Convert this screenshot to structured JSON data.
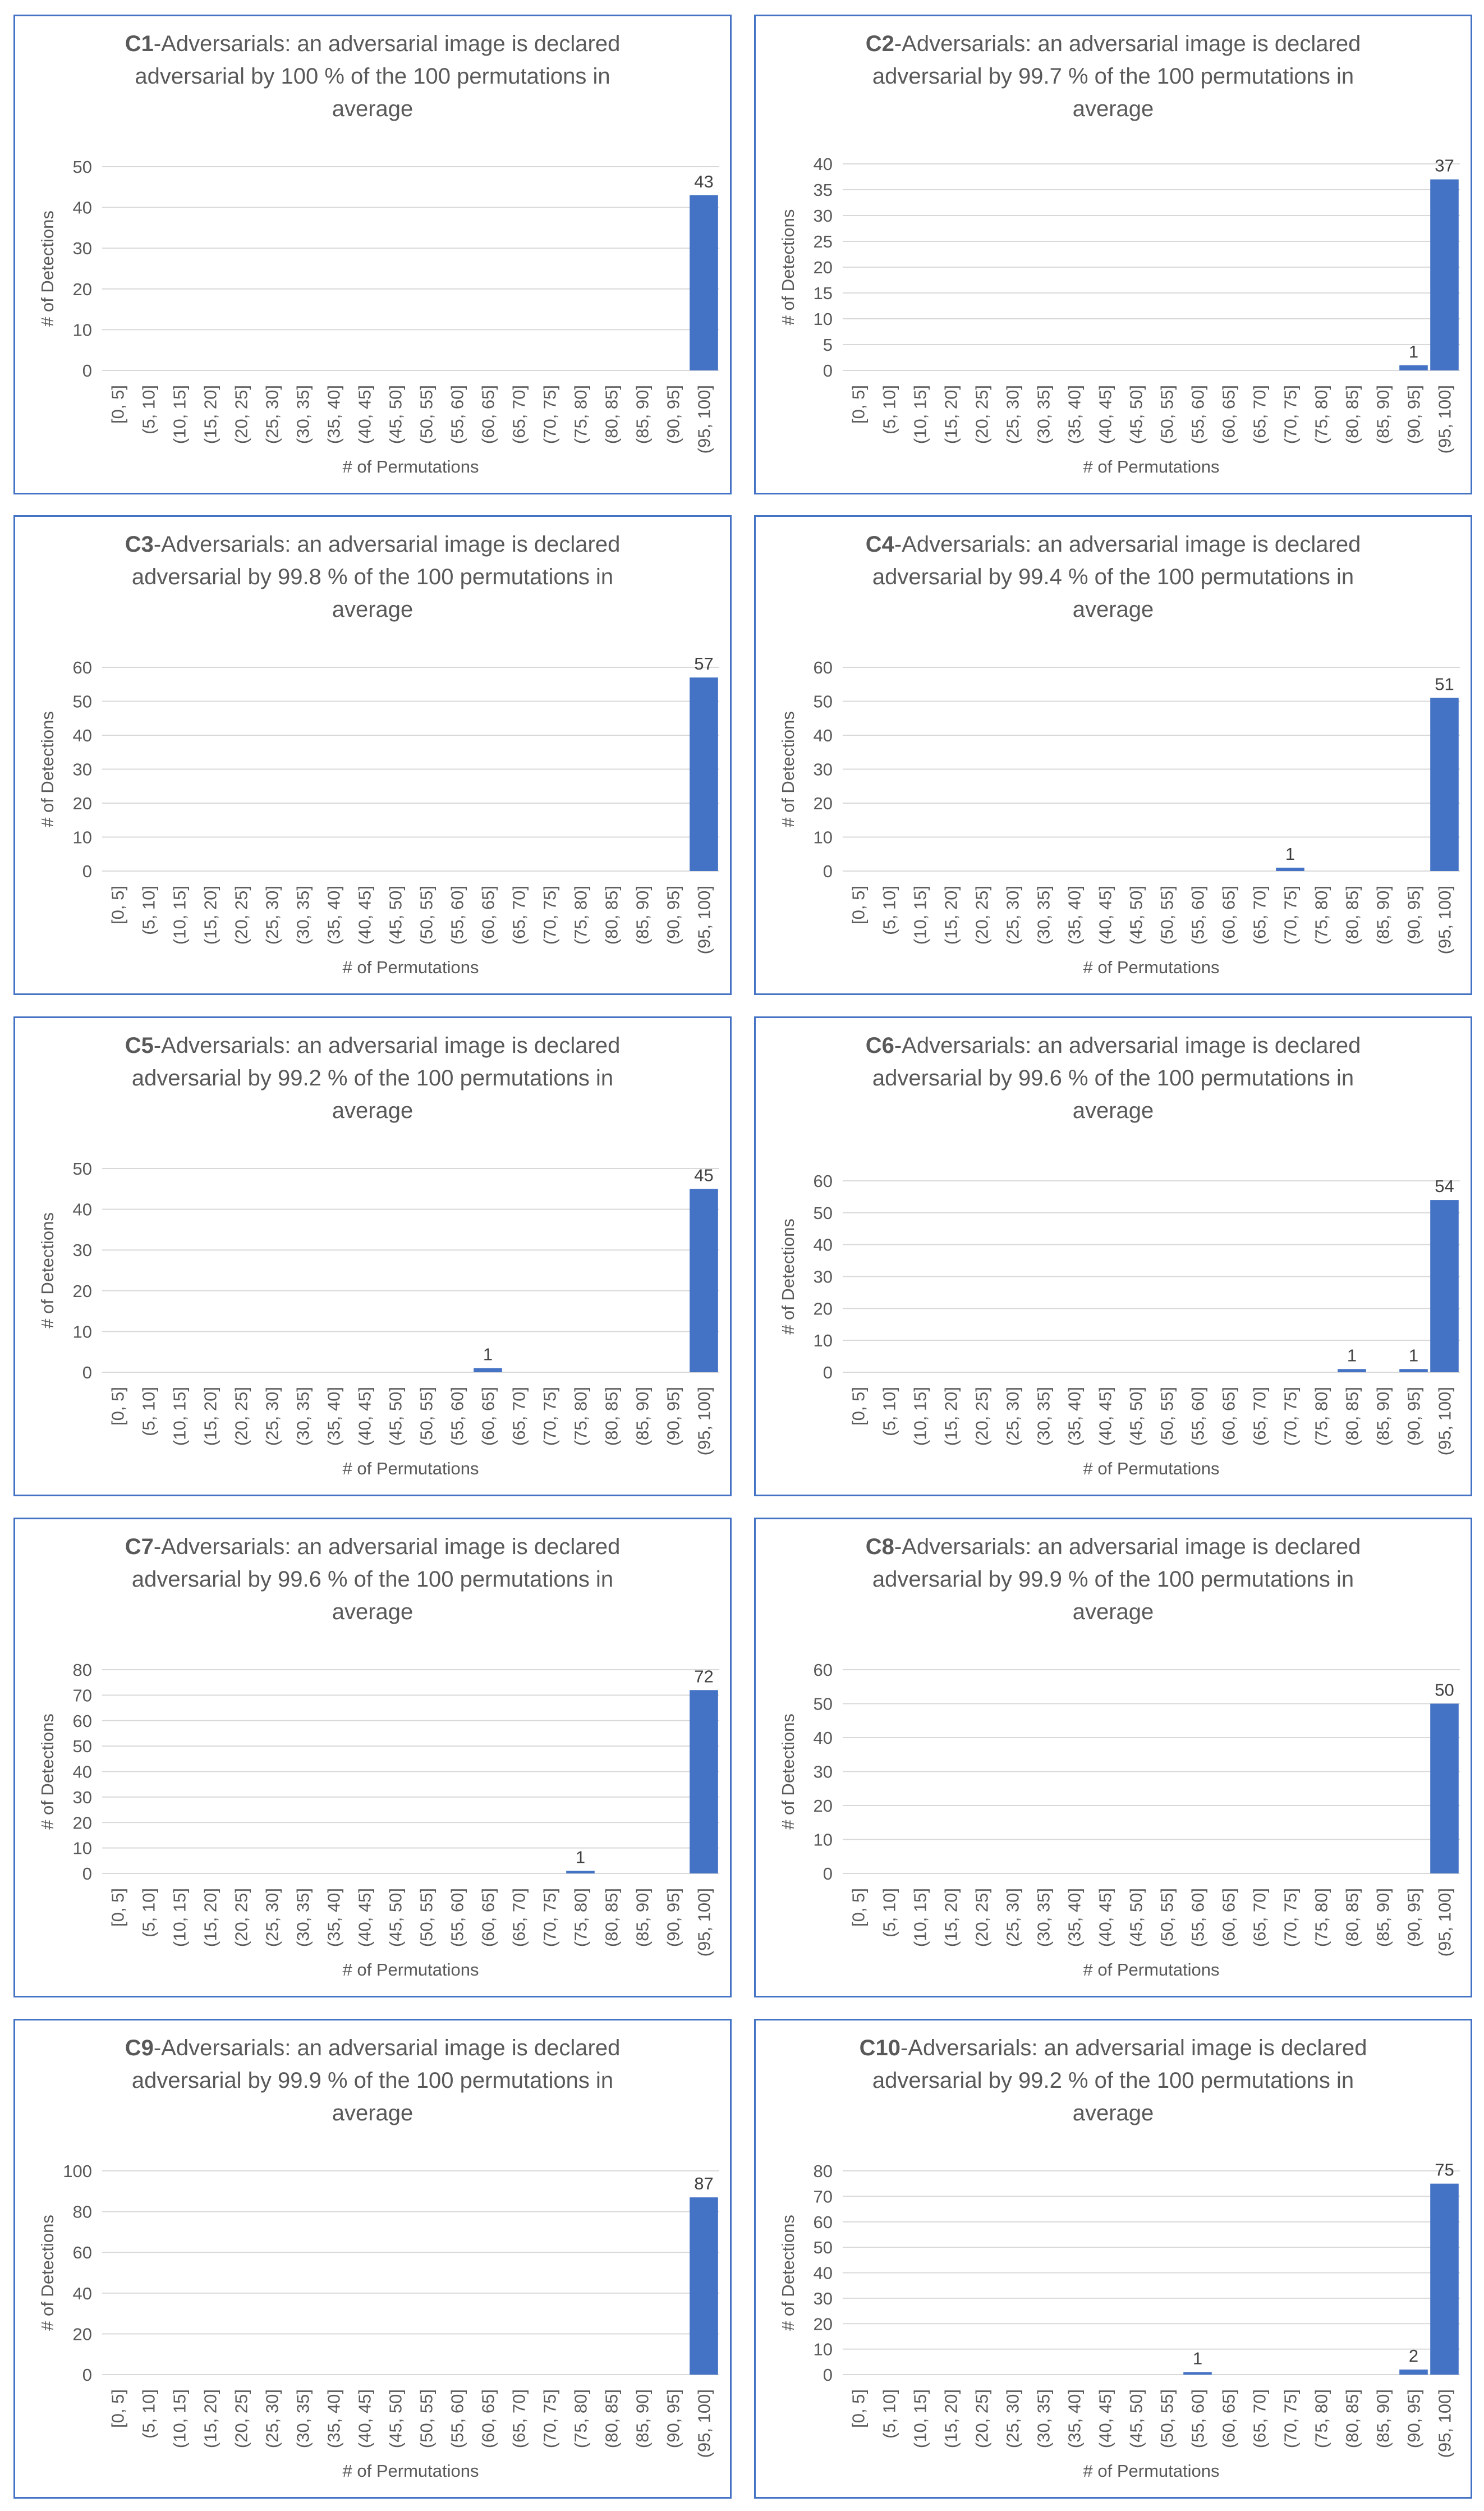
{
  "colors": {
    "bar": "#4472c4",
    "border": "#4472c4",
    "grid": "#d9d9d9",
    "text": "#595959"
  },
  "chart_data": [
    {
      "type": "bar",
      "title_bold": "C1",
      "title_rest": [
        "-Adversarials: an adversarial image is declared",
        "adversarial by 100 % of the 100 permutations in",
        "average"
      ],
      "xlabel": "# of Permutations",
      "ylabel": "# of Detections",
      "categories": [
        "[0, 5]",
        "(5, 10]",
        "(10, 15]",
        "(15, 20]",
        "(20, 25]",
        "(25, 30]",
        "(30, 35]",
        "(35, 40]",
        "(40, 45]",
        "(45, 50]",
        "(50, 55]",
        "(55, 60]",
        "(60, 65]",
        "(65, 70]",
        "(70, 75]",
        "(75, 80]",
        "(80, 85]",
        "(85, 90]",
        "(90, 95]",
        "(95, 100]"
      ],
      "values": [
        0,
        0,
        0,
        0,
        0,
        0,
        0,
        0,
        0,
        0,
        0,
        0,
        0,
        0,
        0,
        0,
        0,
        0,
        0,
        43
      ],
      "yticks": [
        0,
        10,
        20,
        30,
        40,
        50
      ],
      "ylim": [
        0,
        50
      ],
      "grid": true
    },
    {
      "type": "bar",
      "title_bold": "C2",
      "title_rest": [
        "-Adversarials: an adversarial image is declared",
        "adversarial by 99.7 % of the 100 permutations in",
        "average"
      ],
      "xlabel": "# of Permutations",
      "ylabel": "# of Detections",
      "categories": [
        "[0, 5]",
        "(5, 10]",
        "(10, 15]",
        "(15, 20]",
        "(20, 25]",
        "(25, 30]",
        "(30, 35]",
        "(35, 40]",
        "(40, 45]",
        "(45, 50]",
        "(50, 55]",
        "(55, 60]",
        "(60, 65]",
        "(65, 70]",
        "(70, 75]",
        "(75, 80]",
        "(80, 85]",
        "(85, 90]",
        "(90, 95]",
        "(95, 100]"
      ],
      "values": [
        0,
        0,
        0,
        0,
        0,
        0,
        0,
        0,
        0,
        0,
        0,
        0,
        0,
        0,
        0,
        0,
        0,
        0,
        1,
        37
      ],
      "yticks": [
        0,
        5,
        10,
        15,
        20,
        25,
        30,
        35,
        40
      ],
      "ylim": [
        0,
        40
      ],
      "grid": true
    },
    {
      "type": "bar",
      "title_bold": "C3",
      "title_rest": [
        "-Adversarials: an adversarial image is declared",
        "adversarial by 99.8 % of the 100 permutations in",
        "average"
      ],
      "xlabel": "# of Permutations",
      "ylabel": "# of Detections",
      "categories": [
        "[0, 5]",
        "(5, 10]",
        "(10, 15]",
        "(15, 20]",
        "(20, 25]",
        "(25, 30]",
        "(30, 35]",
        "(35, 40]",
        "(40, 45]",
        "(45, 50]",
        "(50, 55]",
        "(55, 60]",
        "(60, 65]",
        "(65, 70]",
        "(70, 75]",
        "(75, 80]",
        "(80, 85]",
        "(85, 90]",
        "(90, 95]",
        "(95, 100]"
      ],
      "values": [
        0,
        0,
        0,
        0,
        0,
        0,
        0,
        0,
        0,
        0,
        0,
        0,
        0,
        0,
        0,
        0,
        0,
        0,
        0,
        57
      ],
      "yticks": [
        0,
        10,
        20,
        30,
        40,
        50,
        60
      ],
      "ylim": [
        0,
        60
      ],
      "grid": true
    },
    {
      "type": "bar",
      "title_bold": "C4",
      "title_rest": [
        "-Adversarials: an adversarial image is declared",
        "adversarial by 99.4 % of the 100 permutations in",
        "average"
      ],
      "xlabel": "# of Permutations",
      "ylabel": "# of Detections",
      "categories": [
        "[0, 5]",
        "(5, 10]",
        "(10, 15]",
        "(15, 20]",
        "(20, 25]",
        "(25, 30]",
        "(30, 35]",
        "(35, 40]",
        "(40, 45]",
        "(45, 50]",
        "(50, 55]",
        "(55, 60]",
        "(60, 65]",
        "(65, 70]",
        "(70, 75]",
        "(75, 80]",
        "(80, 85]",
        "(85, 90]",
        "(90, 95]",
        "(95, 100]"
      ],
      "values": [
        0,
        0,
        0,
        0,
        0,
        0,
        0,
        0,
        0,
        0,
        0,
        0,
        0,
        0,
        1,
        0,
        0,
        0,
        0,
        51
      ],
      "yticks": [
        0,
        10,
        20,
        30,
        40,
        50,
        60
      ],
      "ylim": [
        0,
        60
      ],
      "grid": true
    },
    {
      "type": "bar",
      "title_bold": "C5",
      "title_rest": [
        "-Adversarials: an adversarial image is declared",
        "adversarial by 99.2 % of the 100 permutations in",
        "average"
      ],
      "xlabel": "# of Permutations",
      "ylabel": "# of Detections",
      "categories": [
        "[0, 5]",
        "(5, 10]",
        "(10, 15]",
        "(15, 20]",
        "(20, 25]",
        "(25, 30]",
        "(30, 35]",
        "(35, 40]",
        "(40, 45]",
        "(45, 50]",
        "(50, 55]",
        "(55, 60]",
        "(60, 65]",
        "(65, 70]",
        "(70, 75]",
        "(75, 80]",
        "(80, 85]",
        "(85, 90]",
        "(90, 95]",
        "(95, 100]"
      ],
      "values": [
        0,
        0,
        0,
        0,
        0,
        0,
        0,
        0,
        0,
        0,
        0,
        0,
        1,
        0,
        0,
        0,
        0,
        0,
        0,
        45
      ],
      "yticks": [
        0,
        10,
        20,
        30,
        40,
        50
      ],
      "ylim": [
        0,
        50
      ],
      "grid": true
    },
    {
      "type": "bar",
      "title_bold": "C6",
      "title_rest": [
        "-Adversarials: an adversarial image is declared",
        "adversarial by 99.6 % of the 100 permutations in",
        "average"
      ],
      "xlabel": "# of Permutations",
      "ylabel": "# of Detections",
      "categories": [
        "[0, 5]",
        "(5, 10]",
        "(10, 15]",
        "(15, 20]",
        "(20, 25]",
        "(25, 30]",
        "(30, 35]",
        "(35, 40]",
        "(40, 45]",
        "(45, 50]",
        "(50, 55]",
        "(55, 60]",
        "(60, 65]",
        "(65, 70]",
        "(70, 75]",
        "(75, 80]",
        "(80, 85]",
        "(85, 90]",
        "(90, 95]",
        "(95, 100]"
      ],
      "values": [
        0,
        0,
        0,
        0,
        0,
        0,
        0,
        0,
        0,
        0,
        0,
        0,
        0,
        0,
        0,
        0,
        1,
        0,
        1,
        54
      ],
      "yticks": [
        0,
        10,
        20,
        30,
        40,
        50,
        60
      ],
      "ylim": [
        0,
        60
      ],
      "grid": true
    },
    {
      "type": "bar",
      "title_bold": "C7",
      "title_rest": [
        "-Adversarials: an adversarial image is declared",
        "adversarial by 99.6 % of the 100 permutations in",
        "average"
      ],
      "xlabel": "# of Permutations",
      "ylabel": "# of Detections",
      "categories": [
        "[0, 5]",
        "(5, 10]",
        "(10, 15]",
        "(15, 20]",
        "(20, 25]",
        "(25, 30]",
        "(30, 35]",
        "(35, 40]",
        "(40, 45]",
        "(45, 50]",
        "(50, 55]",
        "(55, 60]",
        "(60, 65]",
        "(65, 70]",
        "(70, 75]",
        "(75, 80]",
        "(80, 85]",
        "(85, 90]",
        "(90, 95]",
        "(95, 100]"
      ],
      "values": [
        0,
        0,
        0,
        0,
        0,
        0,
        0,
        0,
        0,
        0,
        0,
        0,
        0,
        0,
        0,
        1,
        0,
        0,
        0,
        72
      ],
      "yticks": [
        0,
        10,
        20,
        30,
        40,
        50,
        60,
        70,
        80
      ],
      "ylim": [
        0,
        80
      ],
      "grid": true
    },
    {
      "type": "bar",
      "title_bold": "C8",
      "title_rest": [
        "-Adversarials: an adversarial image is declared",
        "adversarial by 99.9 % of the 100 permutations in",
        "average"
      ],
      "xlabel": "# of Permutations",
      "ylabel": "# of Detections",
      "categories": [
        "[0, 5]",
        "(5, 10]",
        "(10, 15]",
        "(15, 20]",
        "(20, 25]",
        "(25, 30]",
        "(30, 35]",
        "(35, 40]",
        "(40, 45]",
        "(45, 50]",
        "(50, 55]",
        "(55, 60]",
        "(60, 65]",
        "(65, 70]",
        "(70, 75]",
        "(75, 80]",
        "(80, 85]",
        "(85, 90]",
        "(90, 95]",
        "(95, 100]"
      ],
      "values": [
        0,
        0,
        0,
        0,
        0,
        0,
        0,
        0,
        0,
        0,
        0,
        0,
        0,
        0,
        0,
        0,
        0,
        0,
        0,
        50
      ],
      "yticks": [
        0,
        10,
        20,
        30,
        40,
        50,
        60
      ],
      "ylim": [
        0,
        60
      ],
      "grid": true
    },
    {
      "type": "bar",
      "title_bold": "C9",
      "title_rest": [
        "-Adversarials: an adversarial image is declared",
        "adversarial by 99.9 % of the 100 permutations in",
        "average"
      ],
      "xlabel": "# of Permutations",
      "ylabel": "# of Detections",
      "categories": [
        "[0, 5]",
        "(5, 10]",
        "(10, 15]",
        "(15, 20]",
        "(20, 25]",
        "(25, 30]",
        "(30, 35]",
        "(35, 40]",
        "(40, 45]",
        "(45, 50]",
        "(50, 55]",
        "(55, 60]",
        "(60, 65]",
        "(65, 70]",
        "(70, 75]",
        "(75, 80]",
        "(80, 85]",
        "(85, 90]",
        "(90, 95]",
        "(95, 100]"
      ],
      "values": [
        0,
        0,
        0,
        0,
        0,
        0,
        0,
        0,
        0,
        0,
        0,
        0,
        0,
        0,
        0,
        0,
        0,
        0,
        0,
        87
      ],
      "yticks": [
        0,
        20,
        40,
        60,
        80,
        100
      ],
      "ylim": [
        0,
        100
      ],
      "grid": true
    },
    {
      "type": "bar",
      "title_bold": "C10",
      "title_rest": [
        "-Adversarials: an adversarial image is declared",
        "adversarial by 99.2 % of the 100 permutations in",
        "average"
      ],
      "xlabel": "# of Permutations",
      "ylabel": "# of Detections",
      "categories": [
        "[0, 5]",
        "(5, 10]",
        "(10, 15]",
        "(15, 20]",
        "(20, 25]",
        "(25, 30]",
        "(30, 35]",
        "(35, 40]",
        "(40, 45]",
        "(45, 50]",
        "(50, 55]",
        "(55, 60]",
        "(60, 65]",
        "(65, 70]",
        "(70, 75]",
        "(75, 80]",
        "(80, 85]",
        "(85, 90]",
        "(90, 95]",
        "(95, 100]"
      ],
      "values": [
        0,
        0,
        0,
        0,
        0,
        0,
        0,
        0,
        0,
        0,
        0,
        1,
        0,
        0,
        0,
        0,
        0,
        0,
        2,
        75
      ],
      "yticks": [
        0,
        10,
        20,
        30,
        40,
        50,
        60,
        70,
        80
      ],
      "ylim": [
        0,
        80
      ],
      "grid": true
    }
  ]
}
